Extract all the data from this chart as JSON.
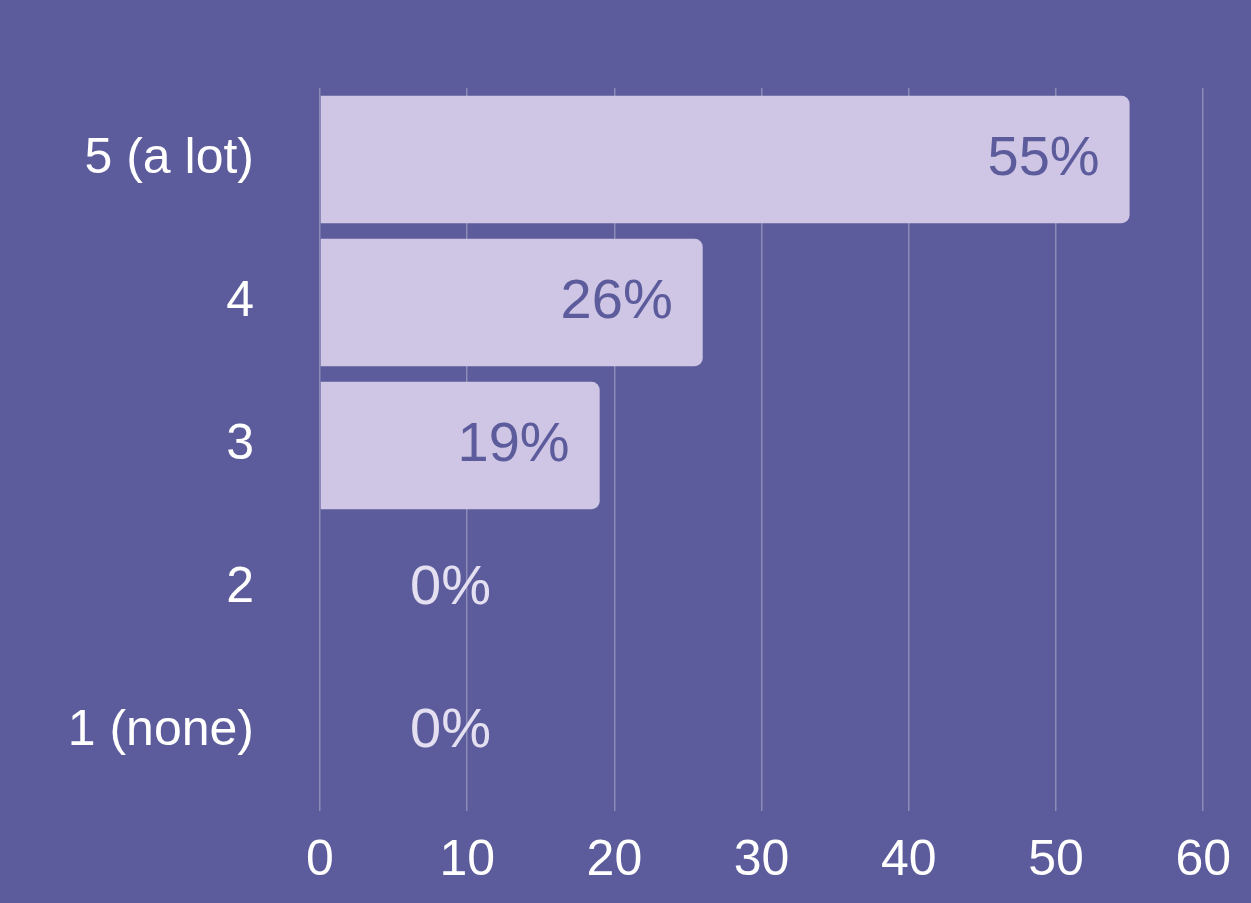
{
  "chart_data": {
    "type": "bar",
    "orientation": "horizontal",
    "categories": [
      "5 (a lot)",
      "4",
      "3",
      "2",
      "1 (none)"
    ],
    "values": [
      55,
      26,
      19,
      0,
      0
    ],
    "value_labels": [
      "55%",
      "26%",
      "19%",
      "0%",
      "0%"
    ],
    "color": "#cfc6e5",
    "xlim": [
      0,
      60
    ],
    "xticks": [
      0,
      10,
      20,
      30,
      40,
      50,
      60
    ],
    "grid": "x",
    "legend": false
  }
}
